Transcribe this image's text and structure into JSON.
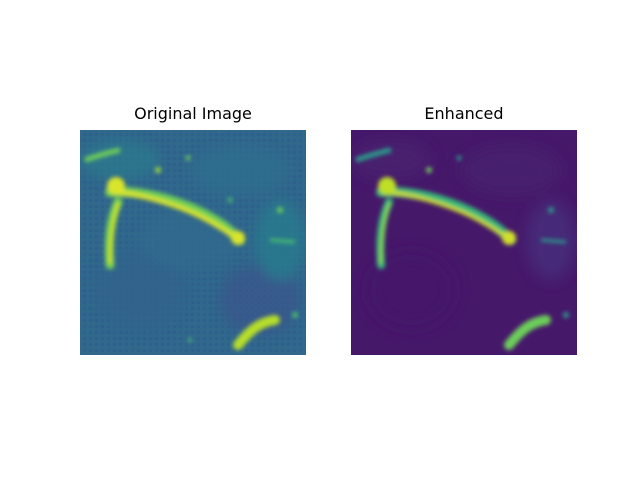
{
  "figure": {
    "panels": [
      {
        "title": "Original Image",
        "colormap": "viridis",
        "background_color": "#31668d",
        "highlight_color": "#d9e52a",
        "accent_color": "#6fcf57"
      },
      {
        "title": "Enhanced",
        "colormap": "viridis",
        "background_color": "#46186a",
        "highlight_color": "#cfe02a",
        "accent_color": "#35b779"
      }
    ]
  }
}
